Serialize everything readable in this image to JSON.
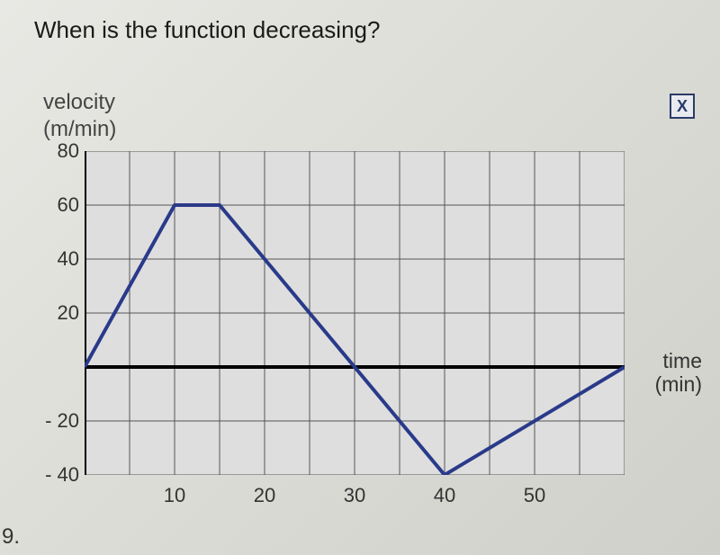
{
  "question_number": "9.",
  "question_text": "When is the function decreasing?",
  "close_button": "X",
  "chart": {
    "type": "line",
    "y_axis_label_line1": "velocity",
    "y_axis_label_line2": "(m/min)",
    "x_axis_label_line1": "time",
    "x_axis_label_line2": "(min)",
    "xlim": [
      0,
      60
    ],
    "ylim": [
      -40,
      80
    ],
    "x_ticks": [
      10,
      20,
      30,
      40,
      50
    ],
    "y_ticks": [
      -40,
      -20,
      20,
      40,
      60,
      80
    ],
    "x_grid": [
      5,
      10,
      15,
      20,
      25,
      30,
      35,
      40,
      45,
      50,
      55,
      60
    ],
    "y_grid": [
      -40,
      -20,
      0,
      20,
      40,
      60,
      80
    ],
    "data_points": [
      {
        "x": 0,
        "y": 0
      },
      {
        "x": 10,
        "y": 60
      },
      {
        "x": 15,
        "y": 60
      },
      {
        "x": 40,
        "y": -40
      },
      {
        "x": 60,
        "y": 0
      }
    ],
    "line_color": "#2a3a8a",
    "line_width": 4,
    "axis_color": "#000000",
    "axis_width": 4,
    "grid_color": "#555555",
    "grid_width": 1,
    "background_color": "#dedede",
    "tick_fontsize": 22,
    "label_fontsize": 24,
    "question_fontsize": 26
  }
}
